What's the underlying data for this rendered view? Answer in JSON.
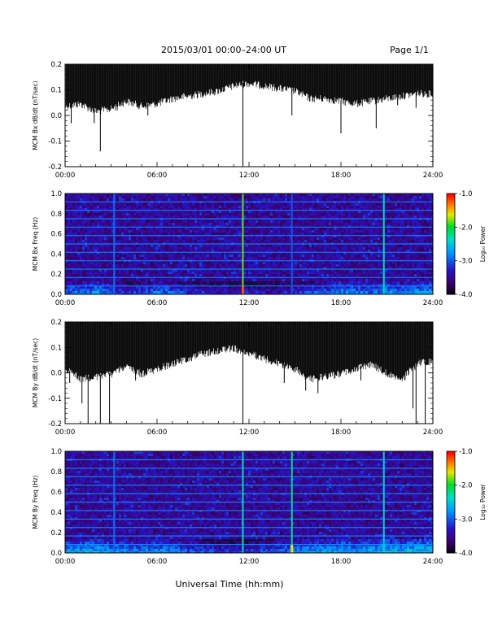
{
  "header": {
    "title": "2015/03/01  00:00–24:00 UT",
    "page": "Page 1/1"
  },
  "footer": {
    "xlabel": "Universal Time (hh:mm)"
  },
  "colors": {
    "trace": "#000000",
    "axis": "#000000",
    "spectrogram_background": "#101040"
  },
  "colorbar": {
    "label": "Log₁₀ Power",
    "ticks": [
      "-1.0",
      "-2.0",
      "-3.0",
      "-4.0"
    ],
    "range": [
      -4.0,
      -1.0
    ],
    "colormap": "rainbow"
  },
  "chart_data": [
    {
      "type": "line",
      "name": "panel-bx-dbdt",
      "ylabel": "MCM Bx dB/dt (nT/sec)",
      "xlim": [
        0,
        24
      ],
      "ylim": [
        -0.2,
        0.2
      ],
      "xticks": [
        "00:00",
        "06:00",
        "12:00",
        "18:00",
        "24:00"
      ],
      "yticks": [
        "-0.2",
        "-0.1",
        "0.0",
        "0.1",
        "0.2"
      ],
      "series": [
        {
          "x": [
            0,
            1,
            2,
            3,
            4,
            5,
            6,
            7,
            8,
            9,
            10,
            11,
            12,
            13,
            14,
            15,
            16,
            17,
            18,
            19,
            20,
            21,
            22,
            23,
            24
          ],
          "upper": [
            0.2,
            0.2,
            0.2,
            0.2,
            0.2,
            0.2,
            0.2,
            0.2,
            0.2,
            0.2,
            0.2,
            0.2,
            0.2,
            0.2,
            0.2,
            0.2,
            0.2,
            0.2,
            0.2,
            0.2,
            0.2,
            0.2,
            0.2,
            0.2,
            0.2
          ],
          "lower": [
            0.04,
            0.05,
            0.02,
            0.03,
            0.06,
            0.04,
            0.05,
            0.07,
            0.08,
            0.09,
            0.1,
            0.12,
            0.13,
            0.12,
            0.11,
            0.1,
            0.07,
            0.07,
            0.06,
            0.05,
            0.06,
            0.07,
            0.08,
            0.09,
            0.09
          ]
        }
      ],
      "spikes": [
        {
          "x": 0.4,
          "y": -0.03
        },
        {
          "x": 1.9,
          "y": -0.03
        },
        {
          "x": 2.3,
          "y": -0.14
        },
        {
          "x": 3.4,
          "y": 0.02
        },
        {
          "x": 5.4,
          "y": 0.0
        },
        {
          "x": 11.6,
          "y": -0.2
        },
        {
          "x": 14.8,
          "y": 0.0
        },
        {
          "x": 18.0,
          "y": -0.07
        },
        {
          "x": 20.3,
          "y": -0.05
        },
        {
          "x": 21.7,
          "y": 0.04
        },
        {
          "x": 22.9,
          "y": 0.03
        }
      ]
    },
    {
      "type": "heatmap",
      "name": "panel-bx-spectrogram",
      "ylabel": "MCM Bx Freq (Hz)",
      "xlim": [
        0,
        24
      ],
      "ylim": [
        0.0,
        1.0
      ],
      "xticks": [
        "00:00",
        "06:00",
        "12:00",
        "18:00",
        "24:00"
      ],
      "yticks": [
        "0.0",
        "0.2",
        "0.4",
        "0.6",
        "0.8",
        "1.0"
      ],
      "harmonic_lines_hz": [
        0.083,
        0.167,
        0.25,
        0.333,
        0.417,
        0.5,
        0.583,
        0.667,
        0.75,
        0.833,
        0.917,
        1.0
      ],
      "vertical_streaks": [
        {
          "x": 3.2,
          "power": -2.9
        },
        {
          "x": 11.6,
          "power": -1.8
        },
        {
          "x": 14.8,
          "power": -3.0
        },
        {
          "x": 20.8,
          "power": -2.3
        }
      ],
      "low_freq_power": [
        -2.8,
        -2.7,
        -2.6,
        -2.8,
        -3.0,
        -2.9,
        -2.7,
        -2.8,
        -3.0,
        -3.0,
        -3.1,
        -3.2,
        -3.1,
        -3.2,
        -3.1,
        -3.0,
        -2.9,
        -2.8,
        -2.6,
        -2.7,
        -2.8,
        -2.6,
        -2.7,
        -2.6,
        -2.6
      ]
    },
    {
      "type": "line",
      "name": "panel-by-dbdt",
      "ylabel": "MCM By dB/dt (nT/sec)",
      "xlim": [
        0,
        24
      ],
      "ylim": [
        -0.2,
        0.2
      ],
      "xticks": [
        "00:00",
        "06:00",
        "12:00",
        "18:00",
        "24:00"
      ],
      "yticks": [
        "-0.2",
        "-0.1",
        "0.0",
        "0.1",
        "0.2"
      ],
      "series": [
        {
          "x": [
            0,
            1,
            2,
            3,
            4,
            5,
            6,
            7,
            8,
            9,
            10,
            11,
            12,
            13,
            14,
            15,
            16,
            17,
            18,
            19,
            20,
            21,
            22,
            23,
            24
          ],
          "upper": [
            0.2,
            0.2,
            0.2,
            0.2,
            0.2,
            0.2,
            0.2,
            0.2,
            0.2,
            0.2,
            0.2,
            0.2,
            0.2,
            0.2,
            0.2,
            0.2,
            0.2,
            0.2,
            0.2,
            0.2,
            0.2,
            0.2,
            0.2,
            0.2,
            0.2
          ],
          "lower": [
            0.02,
            -0.02,
            -0.01,
            0.0,
            0.03,
            0.0,
            0.02,
            0.04,
            0.06,
            0.08,
            0.09,
            0.1,
            0.08,
            0.06,
            0.04,
            0.02,
            -0.02,
            -0.01,
            0.0,
            0.02,
            0.04,
            0.0,
            -0.02,
            0.04,
            0.05
          ]
        }
      ],
      "spikes": [
        {
          "x": 0.3,
          "y": -0.04
        },
        {
          "x": 1.1,
          "y": -0.12
        },
        {
          "x": 1.5,
          "y": -0.2
        },
        {
          "x": 2.3,
          "y": -0.2
        },
        {
          "x": 2.9,
          "y": -0.2
        },
        {
          "x": 4.6,
          "y": -0.03
        },
        {
          "x": 11.6,
          "y": -0.2
        },
        {
          "x": 14.3,
          "y": -0.04
        },
        {
          "x": 15.7,
          "y": -0.07
        },
        {
          "x": 16.5,
          "y": -0.08
        },
        {
          "x": 19.3,
          "y": -0.03
        },
        {
          "x": 22.7,
          "y": -0.14
        },
        {
          "x": 22.9,
          "y": -0.2
        },
        {
          "x": 23.5,
          "y": -0.2
        }
      ]
    },
    {
      "type": "heatmap",
      "name": "panel-by-spectrogram",
      "ylabel": "MCM By Freq (Hz)",
      "xlim": [
        0,
        24
      ],
      "ylim": [
        0.0,
        1.0
      ],
      "xticks": [
        "00:00",
        "06:00",
        "12:00",
        "18:00",
        "24:00"
      ],
      "yticks": [
        "0.0",
        "0.2",
        "0.4",
        "0.6",
        "0.8",
        "1.0"
      ],
      "harmonic_lines_hz": [
        0.083,
        0.167,
        0.25,
        0.333,
        0.417,
        0.5,
        0.583,
        0.667,
        0.75,
        0.833,
        0.917,
        1.0
      ],
      "vertical_streaks": [
        {
          "x": 3.2,
          "power": -2.9
        },
        {
          "x": 11.6,
          "power": -2.3
        },
        {
          "x": 14.8,
          "power": -2.2
        },
        {
          "x": 20.8,
          "power": -2.4
        }
      ],
      "low_freq_power": [
        -2.6,
        -2.5,
        -2.5,
        -2.6,
        -2.7,
        -2.7,
        -2.6,
        -2.7,
        -2.8,
        -2.9,
        -3.0,
        -3.1,
        -3.0,
        -2.9,
        -2.8,
        -2.7,
        -2.6,
        -2.6,
        -2.5,
        -2.6,
        -2.5,
        -2.4,
        -2.5,
        -2.4,
        -2.4
      ]
    }
  ]
}
